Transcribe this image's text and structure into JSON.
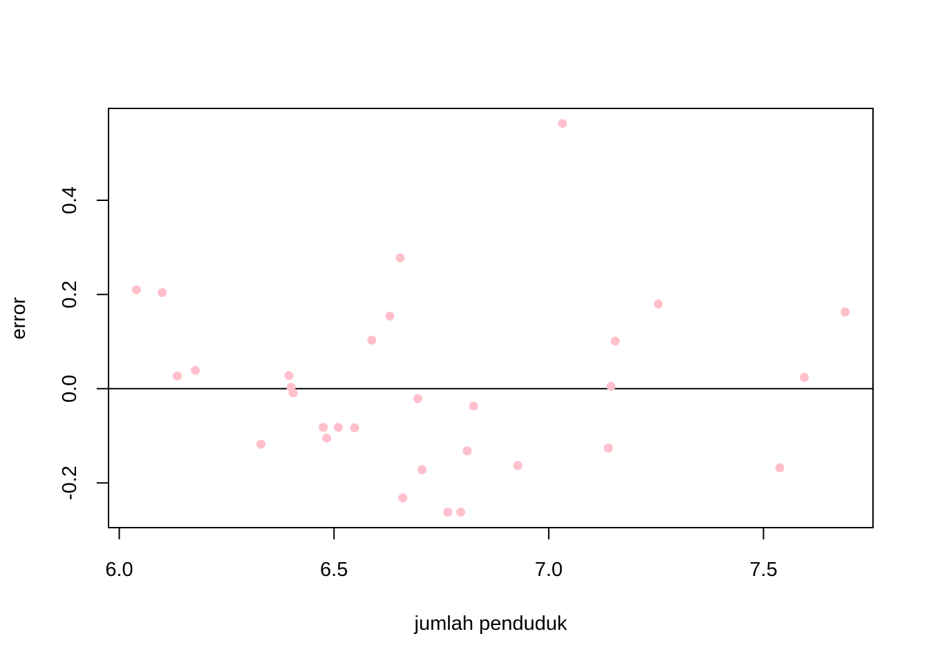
{
  "chart_data": {
    "type": "scatter",
    "title": "",
    "xlabel": "jumlah penduduk",
    "ylabel": "error",
    "xlim": [
      5.975,
      7.755
    ],
    "ylim": [
      -0.295,
      0.595
    ],
    "x_ticks": [
      6.0,
      6.5,
      7.0,
      7.5
    ],
    "x_tick_labels": [
      "6.0",
      "6.5",
      "7.0",
      "7.5"
    ],
    "y_ticks": [
      -0.2,
      0.0,
      0.2,
      0.4
    ],
    "y_tick_labels": [
      "-0.2",
      "0.0",
      "0.2",
      "0.4"
    ],
    "reference_line_y": 0.0,
    "point_color": "#ffc0cb",
    "line_color": "#000000",
    "grid": false,
    "points": [
      {
        "x": 6.04,
        "y": 0.21
      },
      {
        "x": 6.1,
        "y": 0.204
      },
      {
        "x": 6.135,
        "y": 0.027
      },
      {
        "x": 6.177,
        "y": 0.039
      },
      {
        "x": 6.33,
        "y": -0.118
      },
      {
        "x": 6.395,
        "y": 0.028
      },
      {
        "x": 6.4,
        "y": 0.003
      },
      {
        "x": 6.405,
        "y": -0.009
      },
      {
        "x": 6.475,
        "y": -0.082
      },
      {
        "x": 6.483,
        "y": -0.105
      },
      {
        "x": 6.51,
        "y": -0.082
      },
      {
        "x": 6.548,
        "y": -0.083
      },
      {
        "x": 6.588,
        "y": 0.103
      },
      {
        "x": 6.63,
        "y": 0.154
      },
      {
        "x": 6.654,
        "y": 0.278
      },
      {
        "x": 6.66,
        "y": -0.232
      },
      {
        "x": 6.695,
        "y": -0.021
      },
      {
        "x": 6.705,
        "y": -0.172
      },
      {
        "x": 6.765,
        "y": -0.262
      },
      {
        "x": 6.795,
        "y": -0.262
      },
      {
        "x": 6.81,
        "y": -0.132
      },
      {
        "x": 6.825,
        "y": -0.037
      },
      {
        "x": 6.928,
        "y": -0.163
      },
      {
        "x": 7.032,
        "y": 0.563
      },
      {
        "x": 7.139,
        "y": -0.126
      },
      {
        "x": 7.145,
        "y": 0.005
      },
      {
        "x": 7.155,
        "y": 0.101
      },
      {
        "x": 7.255,
        "y": 0.18
      },
      {
        "x": 7.538,
        "y": -0.168
      },
      {
        "x": 7.595,
        "y": 0.024
      },
      {
        "x": 7.69,
        "y": 0.163
      }
    ]
  }
}
